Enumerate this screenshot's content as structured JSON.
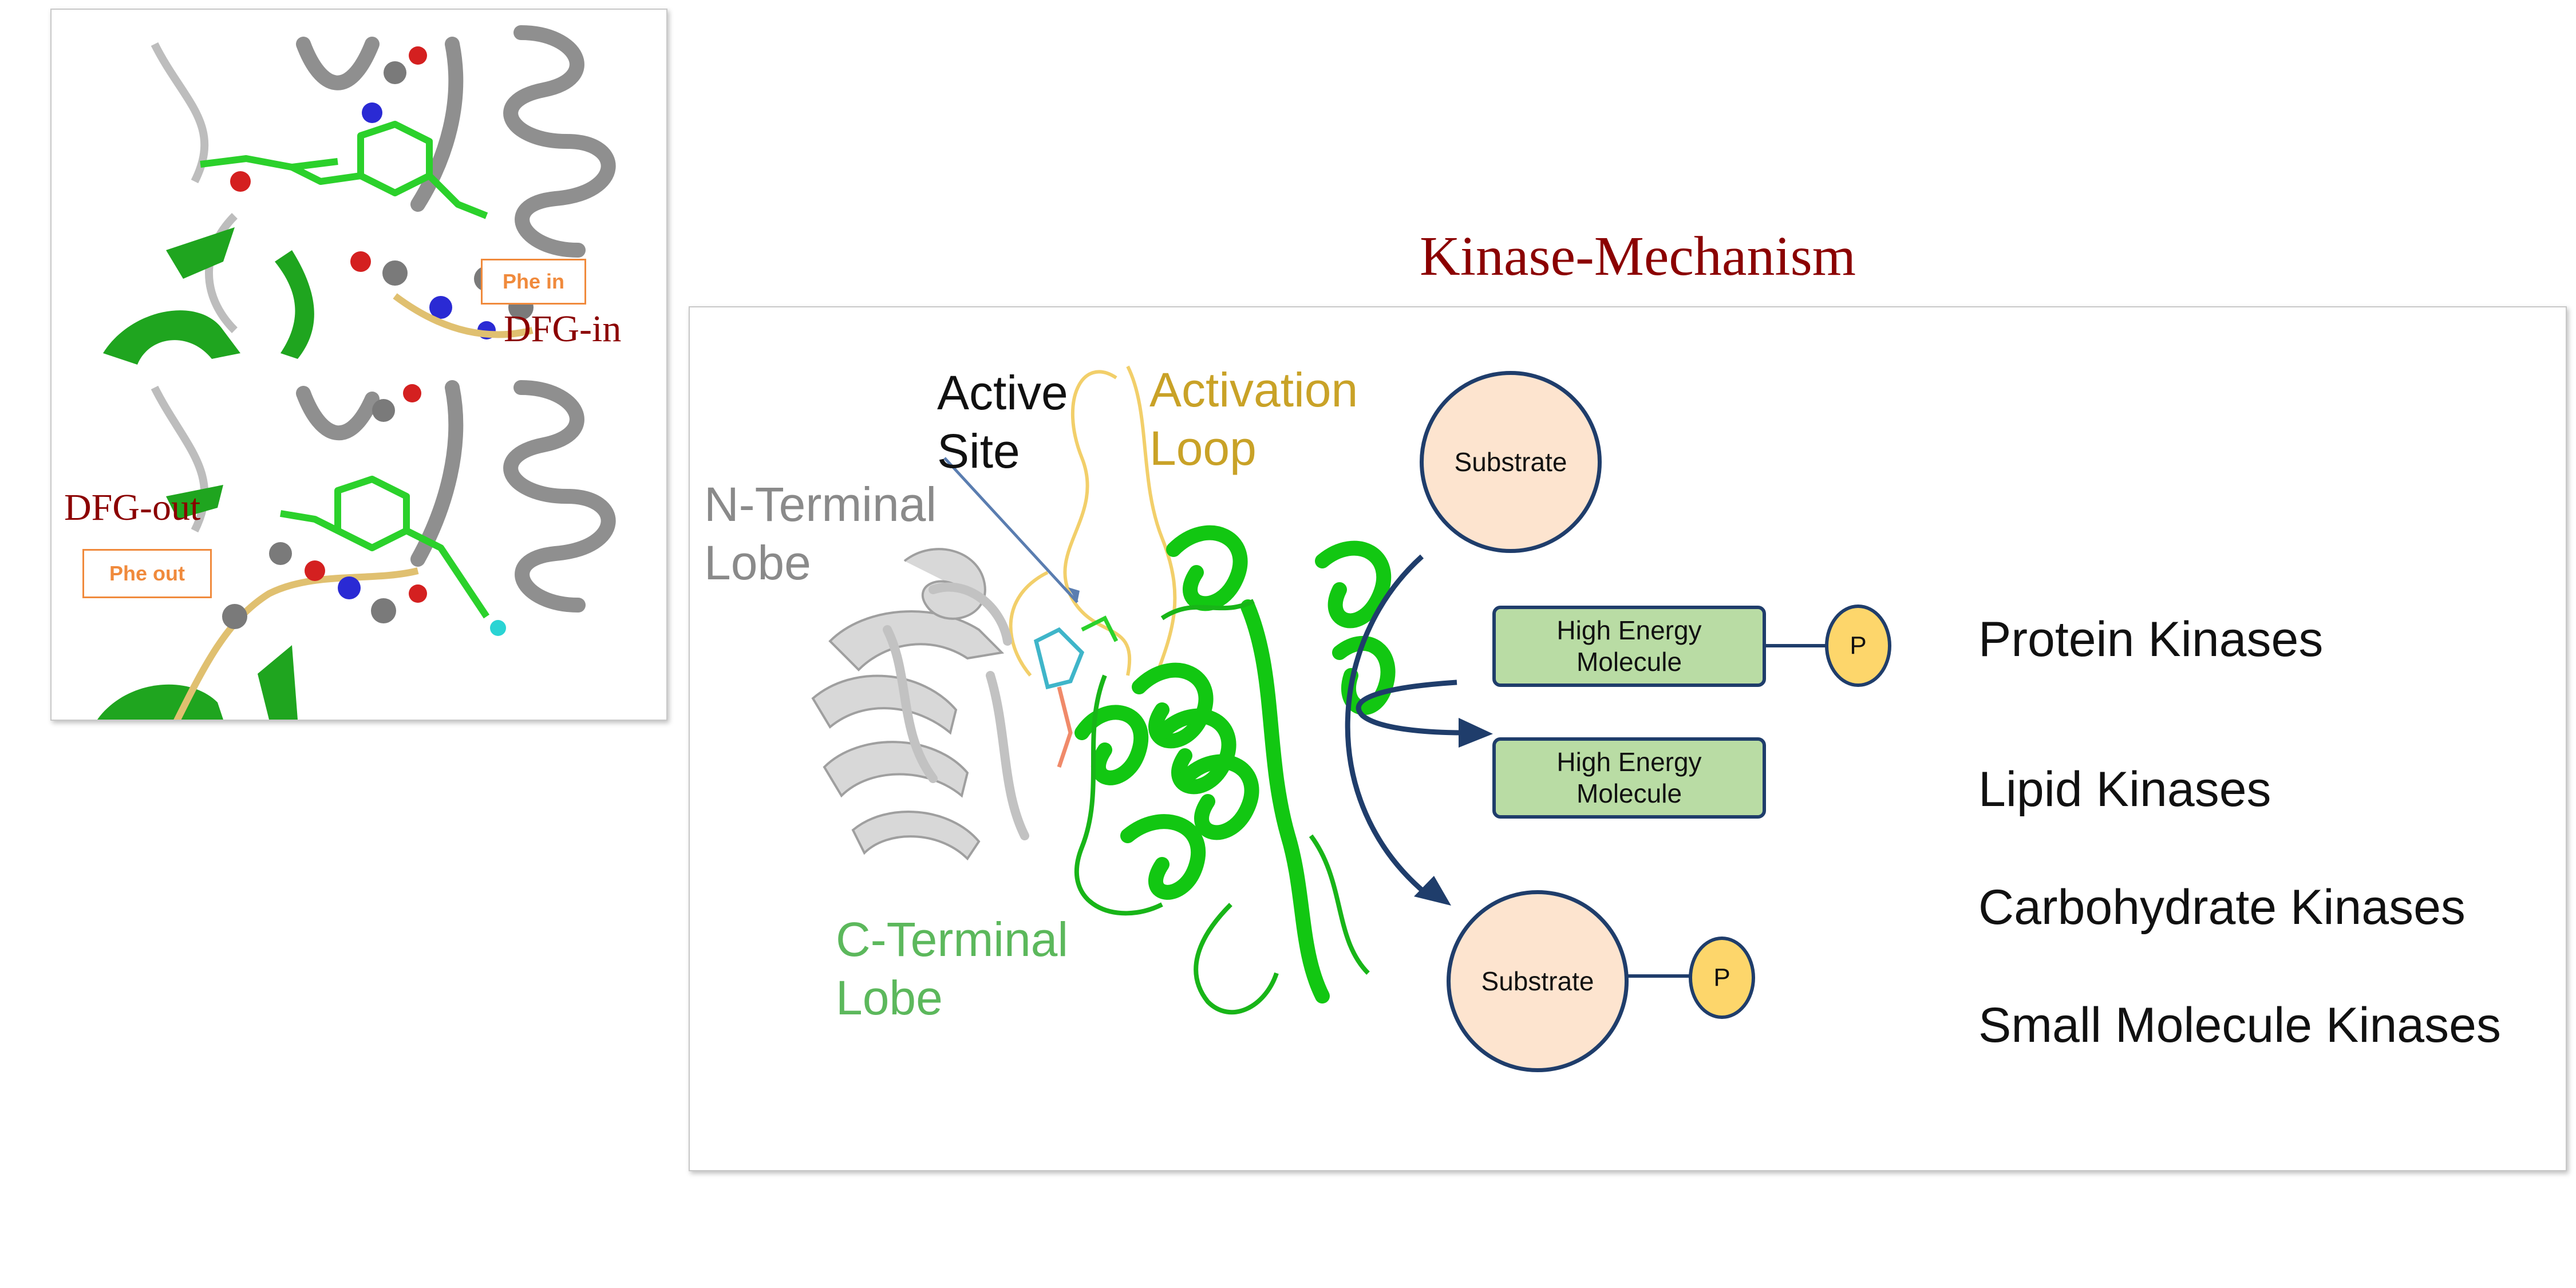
{
  "title": "Kinase-Mechanism",
  "inset": {
    "top_state_label": "DFG-in",
    "top_phe_label": "Phe in",
    "bottom_state_label": "DFG-out",
    "bottom_phe_label": "Phe out"
  },
  "structure_labels": {
    "active_site": [
      "Active",
      "Site"
    ],
    "activation_loop": [
      "Activation",
      "Loop"
    ],
    "n_terminal": [
      "N-Terminal",
      "Lobe"
    ],
    "c_terminal": [
      "C-Terminal",
      "Lobe"
    ]
  },
  "mechanism": {
    "substrate_label": "Substrate",
    "product_label": "Substrate",
    "donor_label": [
      "High Energy",
      "Molecule"
    ],
    "spent_label": [
      "High Energy",
      "Molecule"
    ],
    "phosphate_label": "P"
  },
  "kinase_types": [
    "Protein Kinases",
    "Lipid Kinases",
    "Carbohydrate Kinases",
    "Small Molecule Kinases"
  ],
  "colors": {
    "title": "#8b0000",
    "activation_loop": "#c9a227",
    "n_terminal": "#8a8a8a",
    "c_terminal": "#5cb85c",
    "arrow": "#1f3d6b",
    "substrate_fill": "#fde4cf",
    "molecule_fill": "#b9dca4",
    "phosphate_fill": "#fdd66b",
    "phe_box": "#f08a3c",
    "protein_green": "#1fbf1f",
    "protein_gray": "#9a9a9a"
  }
}
